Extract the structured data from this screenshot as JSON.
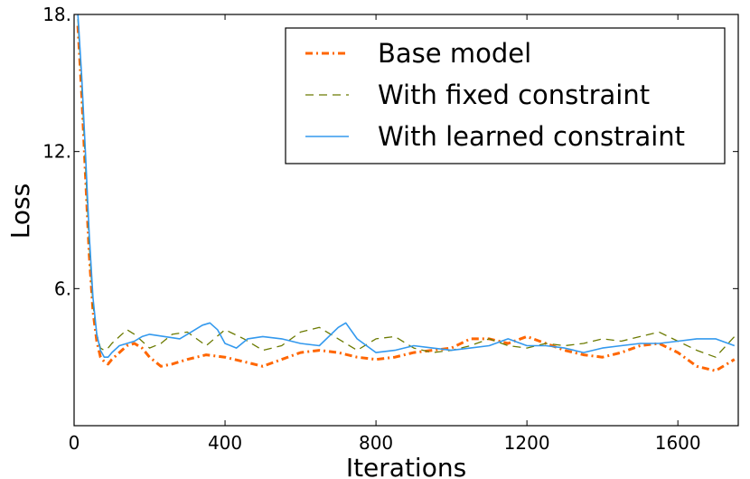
{
  "chart_data": {
    "type": "line",
    "xlabel": "Iterations",
    "ylabel": "Loss",
    "xlim": [
      0,
      1760
    ],
    "ylim": [
      0,
      18
    ],
    "xticks": [
      "0",
      "400",
      "800",
      "1200",
      "1600"
    ],
    "xtick_values": [
      0,
      400,
      800,
      1200,
      1600
    ],
    "yticks": [
      "6.",
      "12.",
      "18."
    ],
    "ytick_values": [
      6,
      12,
      18
    ],
    "grid": false,
    "legend_position": "top-right",
    "series": [
      {
        "name": "Base model",
        "color": "#ff6600",
        "style": "dashdot",
        "x": [
          10,
          20,
          30,
          40,
          50,
          60,
          70,
          80,
          90,
          100,
          120,
          140,
          160,
          180,
          200,
          230,
          260,
          300,
          350,
          400,
          450,
          500,
          550,
          600,
          650,
          700,
          750,
          800,
          850,
          900,
          950,
          1000,
          1050,
          1100,
          1150,
          1200,
          1250,
          1300,
          1350,
          1400,
          1450,
          1500,
          1550,
          1600,
          1650,
          1700,
          1750
        ],
        "y": [
          17.5,
          14.5,
          11.0,
          7.5,
          5.0,
          3.7,
          3.0,
          2.8,
          2.7,
          2.9,
          3.2,
          3.5,
          3.6,
          3.4,
          3.0,
          2.6,
          2.7,
          2.9,
          3.1,
          3.0,
          2.8,
          2.6,
          2.9,
          3.2,
          3.3,
          3.2,
          3.0,
          2.9,
          3.0,
          3.2,
          3.3,
          3.4,
          3.8,
          3.8,
          3.6,
          3.9,
          3.6,
          3.3,
          3.1,
          3.0,
          3.2,
          3.5,
          3.6,
          3.2,
          2.6,
          2.4,
          2.9
        ]
      },
      {
        "name": "With fixed constraint",
        "color": "#6b7a00",
        "style": "dashed",
        "x": [
          10,
          20,
          30,
          40,
          50,
          60,
          70,
          80,
          90,
          100,
          120,
          140,
          160,
          180,
          200,
          230,
          260,
          300,
          350,
          400,
          450,
          500,
          550,
          600,
          650,
          700,
          750,
          800,
          850,
          900,
          950,
          1000,
          1050,
          1100,
          1150,
          1200,
          1250,
          1300,
          1350,
          1400,
          1450,
          1500,
          1550,
          1600,
          1650,
          1700,
          1750
        ],
        "y": [
          17.8,
          15.0,
          11.5,
          8.0,
          5.3,
          4.0,
          3.4,
          3.3,
          3.4,
          3.6,
          3.9,
          4.2,
          4.0,
          3.7,
          3.4,
          3.6,
          4.0,
          4.1,
          3.5,
          4.2,
          3.8,
          3.3,
          3.5,
          4.1,
          4.3,
          3.8,
          3.3,
          3.8,
          3.9,
          3.4,
          3.2,
          3.3,
          3.5,
          3.8,
          3.5,
          3.4,
          3.6,
          3.5,
          3.6,
          3.8,
          3.7,
          3.9,
          4.1,
          3.7,
          3.3,
          3.0,
          3.9
        ]
      },
      {
        "name": "With learned constraint",
        "color": "#3399ee",
        "style": "solid",
        "x": [
          10,
          20,
          30,
          40,
          50,
          60,
          70,
          80,
          90,
          100,
          120,
          140,
          160,
          180,
          200,
          240,
          280,
          310,
          340,
          360,
          380,
          400,
          430,
          460,
          500,
          550,
          600,
          650,
          700,
          720,
          750,
          800,
          850,
          900,
          950,
          1000,
          1050,
          1100,
          1150,
          1200,
          1250,
          1300,
          1350,
          1400,
          1450,
          1500,
          1550,
          1600,
          1650,
          1700,
          1750
        ],
        "y": [
          18.0,
          15.3,
          12.0,
          8.4,
          5.6,
          4.0,
          3.3,
          3.0,
          3.0,
          3.2,
          3.5,
          3.6,
          3.7,
          3.9,
          4.0,
          3.9,
          3.8,
          4.1,
          4.4,
          4.5,
          4.2,
          3.6,
          3.4,
          3.8,
          3.9,
          3.8,
          3.6,
          3.5,
          4.3,
          4.5,
          3.8,
          3.2,
          3.3,
          3.5,
          3.4,
          3.3,
          3.4,
          3.5,
          3.8,
          3.5,
          3.5,
          3.4,
          3.2,
          3.4,
          3.5,
          3.6,
          3.6,
          3.7,
          3.8,
          3.8,
          3.5
        ]
      }
    ]
  }
}
